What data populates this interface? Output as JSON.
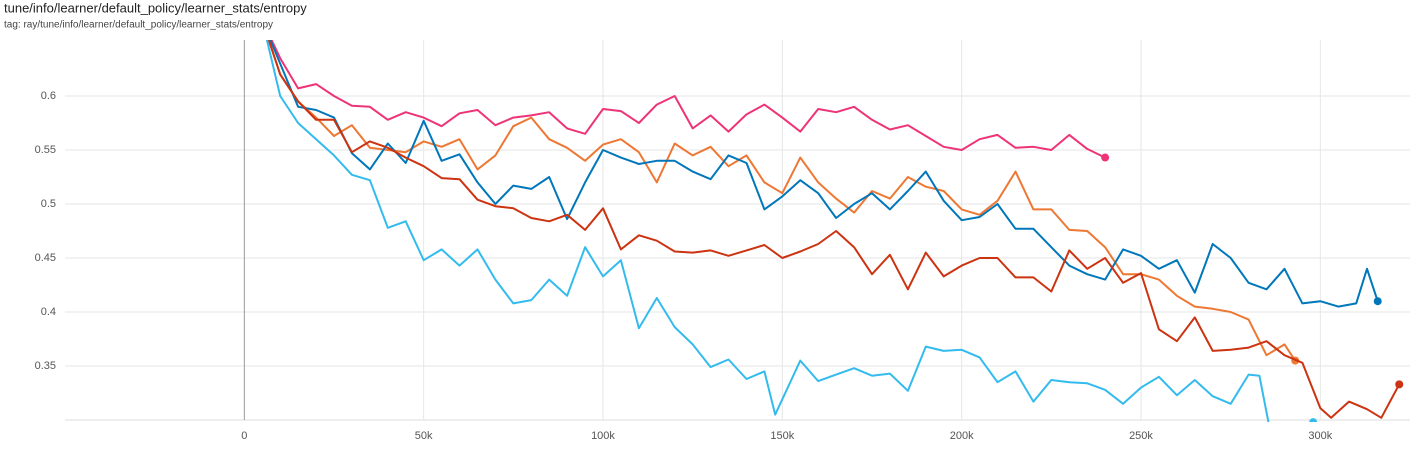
{
  "chart_data": {
    "type": "line",
    "title": "tune/info/learner/default_policy/learner_stats/entropy",
    "subtitle": "tag: ray/tune/info/learner/default_policy/learner_stats/entropy",
    "xlim": [
      -50000,
      325000
    ],
    "ylim": [
      0.3,
      0.65
    ],
    "xticks": [
      0,
      {
        "value": 50000,
        "label": "50k"
      },
      {
        "value": 100000,
        "label": "100k"
      },
      {
        "value": 150000,
        "label": "150k"
      },
      {
        "value": 200000,
        "label": "200k"
      },
      {
        "value": 250000,
        "label": "250k"
      },
      {
        "value": 300000,
        "label": "300k"
      }
    ],
    "yticks": [
      0.35,
      0.4,
      0.45,
      0.5,
      0.55,
      0.6
    ],
    "grid": true,
    "series": [
      {
        "color": "#ee3377",
        "x": [
          5000,
          10000,
          15000,
          20000,
          25000,
          30000,
          35000,
          40000,
          45000,
          50000,
          55000,
          60000,
          65000,
          70000,
          75000,
          80000,
          85000,
          90000,
          95000,
          100000,
          105000,
          110000,
          115000,
          120000,
          125000,
          130000,
          135000,
          140000,
          145000,
          150000,
          155000,
          160000,
          165000,
          170000,
          175000,
          180000,
          185000,
          190000,
          195000,
          200000,
          205000,
          210000,
          215000,
          220000,
          225000,
          230000,
          235000,
          240000
        ],
        "values": [
          0.67,
          0.635,
          0.607,
          0.611,
          0.6,
          0.591,
          0.59,
          0.578,
          0.585,
          0.58,
          0.572,
          0.584,
          0.587,
          0.573,
          0.58,
          0.582,
          0.585,
          0.57,
          0.565,
          0.588,
          0.586,
          0.575,
          0.592,
          0.6,
          0.57,
          0.582,
          0.567,
          0.583,
          0.592,
          0.58,
          0.567,
          0.588,
          0.585,
          0.59,
          0.578,
          0.569,
          0.573,
          0.563,
          0.553,
          0.55,
          0.56,
          0.564,
          0.552,
          0.553,
          0.55,
          0.564,
          0.551,
          0.543
        ]
      },
      {
        "color": "#ee7733",
        "x": [
          5000,
          10000,
          15000,
          20000,
          25000,
          30000,
          35000,
          40000,
          45000,
          50000,
          55000,
          60000,
          65000,
          70000,
          75000,
          80000,
          85000,
          90000,
          95000,
          100000,
          105000,
          110000,
          115000,
          120000,
          125000,
          130000,
          135000,
          140000,
          145000,
          150000,
          155000,
          160000,
          165000,
          170000,
          175000,
          180000,
          185000,
          190000,
          195000,
          200000,
          205000,
          210000,
          215000,
          220000,
          225000,
          230000,
          235000,
          240000,
          245000,
          250000,
          255000,
          260000,
          265000,
          270000,
          275000,
          280000,
          285000,
          290000,
          293000
        ],
        "values": [
          0.67,
          0.62,
          0.595,
          0.58,
          0.563,
          0.573,
          0.552,
          0.55,
          0.548,
          0.558,
          0.553,
          0.56,
          0.532,
          0.545,
          0.572,
          0.58,
          0.56,
          0.552,
          0.54,
          0.555,
          0.56,
          0.548,
          0.52,
          0.556,
          0.545,
          0.553,
          0.535,
          0.545,
          0.52,
          0.51,
          0.543,
          0.52,
          0.505,
          0.492,
          0.512,
          0.505,
          0.525,
          0.516,
          0.512,
          0.495,
          0.49,
          0.503,
          0.53,
          0.495,
          0.495,
          0.476,
          0.475,
          0.46,
          0.435,
          0.435,
          0.43,
          0.415,
          0.405,
          0.403,
          0.4,
          0.393,
          0.36,
          0.37,
          0.355
        ]
      },
      {
        "color": "#0077bb",
        "x": [
          5000,
          10000,
          15000,
          20000,
          25000,
          30000,
          35000,
          40000,
          45000,
          50000,
          55000,
          60000,
          65000,
          70000,
          75000,
          80000,
          85000,
          90000,
          95000,
          100000,
          105000,
          110000,
          115000,
          120000,
          125000,
          130000,
          135000,
          140000,
          145000,
          150000,
          155000,
          160000,
          165000,
          170000,
          175000,
          180000,
          185000,
          190000,
          195000,
          200000,
          205000,
          210000,
          215000,
          220000,
          225000,
          230000,
          235000,
          240000,
          245000,
          250000,
          255000,
          260000,
          265000,
          270000,
          275000,
          280000,
          285000,
          290000,
          295000,
          300000,
          305000,
          310000,
          313000,
          316000
        ],
        "values": [
          0.67,
          0.63,
          0.59,
          0.587,
          0.58,
          0.547,
          0.532,
          0.556,
          0.538,
          0.577,
          0.54,
          0.546,
          0.52,
          0.5,
          0.517,
          0.514,
          0.525,
          0.486,
          0.52,
          0.55,
          0.543,
          0.537,
          0.54,
          0.54,
          0.53,
          0.523,
          0.545,
          0.538,
          0.495,
          0.507,
          0.522,
          0.51,
          0.487,
          0.5,
          0.51,
          0.495,
          0.512,
          0.53,
          0.503,
          0.485,
          0.488,
          0.5,
          0.477,
          0.477,
          0.46,
          0.443,
          0.435,
          0.43,
          0.458,
          0.452,
          0.44,
          0.448,
          0.418,
          0.463,
          0.45,
          0.427,
          0.421,
          0.44,
          0.408,
          0.41,
          0.405,
          0.408,
          0.44,
          0.41
        ]
      },
      {
        "color": "#cc3311",
        "x": [
          5000,
          10000,
          15000,
          20000,
          25000,
          30000,
          35000,
          40000,
          45000,
          50000,
          55000,
          60000,
          65000,
          70000,
          75000,
          80000,
          85000,
          90000,
          95000,
          100000,
          105000,
          110000,
          115000,
          120000,
          125000,
          130000,
          135000,
          140000,
          145000,
          150000,
          155000,
          160000,
          165000,
          170000,
          175000,
          180000,
          185000,
          190000,
          195000,
          200000,
          205000,
          210000,
          215000,
          220000,
          225000,
          230000,
          235000,
          240000,
          245000,
          250000,
          255000,
          260000,
          265000,
          270000,
          275000,
          280000,
          285000,
          290000,
          295000,
          300000,
          303000,
          308000,
          313000,
          317000,
          322000
        ],
        "values": [
          0.67,
          0.62,
          0.595,
          0.578,
          0.578,
          0.548,
          0.558,
          0.552,
          0.543,
          0.535,
          0.524,
          0.523,
          0.504,
          0.498,
          0.496,
          0.487,
          0.484,
          0.49,
          0.476,
          0.496,
          0.458,
          0.471,
          0.466,
          0.456,
          0.455,
          0.457,
          0.452,
          0.457,
          0.462,
          0.45,
          0.456,
          0.463,
          0.475,
          0.46,
          0.435,
          0.453,
          0.421,
          0.455,
          0.433,
          0.443,
          0.45,
          0.45,
          0.432,
          0.432,
          0.419,
          0.457,
          0.44,
          0.45,
          0.427,
          0.436,
          0.384,
          0.373,
          0.395,
          0.364,
          0.365,
          0.367,
          0.373,
          0.36,
          0.353,
          0.311,
          0.302,
          0.317,
          0.31,
          0.302,
          0.333
        ]
      },
      {
        "color": "#33bbee",
        "x": [
          5000,
          10000,
          15000,
          20000,
          25000,
          30000,
          35000,
          40000,
          45000,
          50000,
          55000,
          60000,
          65000,
          70000,
          75000,
          80000,
          85000,
          90000,
          95000,
          100000,
          105000,
          110000,
          115000,
          120000,
          125000,
          130000,
          135000,
          140000,
          145000,
          148000,
          155000,
          160000,
          165000,
          170000,
          175000,
          180000,
          185000,
          190000,
          195000,
          200000,
          205000,
          210000,
          215000,
          220000,
          225000,
          230000,
          235000,
          240000,
          245000,
          250000,
          255000,
          260000,
          265000,
          270000,
          275000,
          280000,
          283000,
          286000,
          298000
        ],
        "values": [
          0.67,
          0.6,
          0.575,
          0.56,
          0.545,
          0.527,
          0.522,
          0.478,
          0.484,
          0.448,
          0.458,
          0.443,
          0.458,
          0.43,
          0.408,
          0.411,
          0.43,
          0.415,
          0.46,
          0.433,
          0.448,
          0.385,
          0.413,
          0.386,
          0.37,
          0.349,
          0.356,
          0.338,
          0.345,
          0.305,
          0.355,
          0.336,
          0.342,
          0.348,
          0.341,
          0.343,
          0.327,
          0.368,
          0.364,
          0.365,
          0.358,
          0.335,
          0.345,
          0.317,
          0.337,
          0.335,
          0.334,
          0.328,
          0.315,
          0.33,
          0.34,
          0.323,
          0.337,
          0.322,
          0.315,
          0.342,
          0.341,
          0.29,
          0.298
        ]
      }
    ]
  }
}
